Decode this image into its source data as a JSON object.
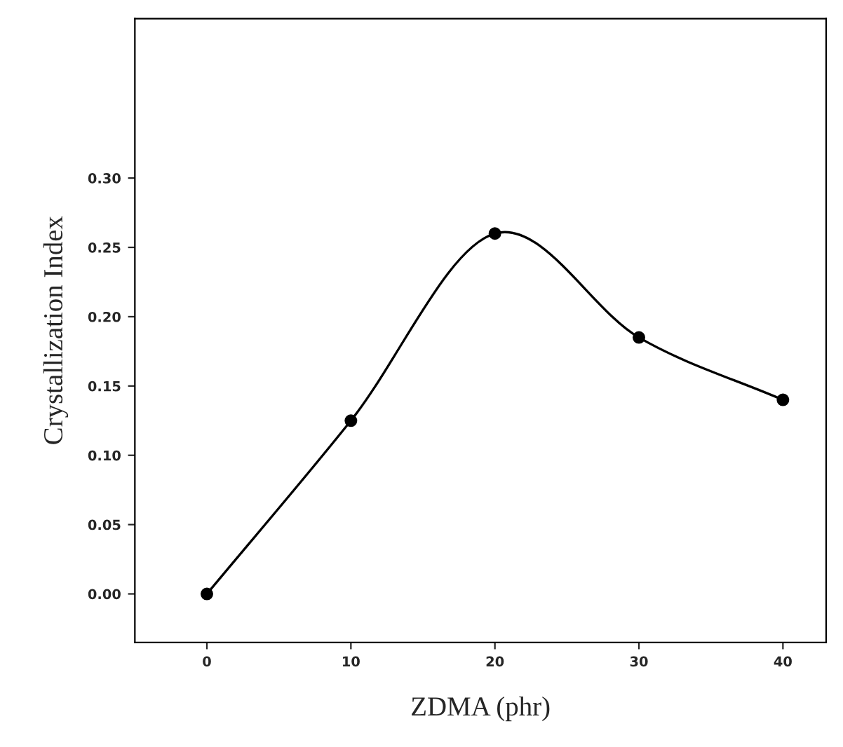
{
  "chart_data": {
    "type": "line",
    "xlabel": "ZDMA (phr)",
    "ylabel": "Crystallization Index",
    "x": [
      0,
      10,
      20,
      30,
      40
    ],
    "series": [
      {
        "color": "#000000",
        "values": [
          0.0,
          0.125,
          0.26,
          0.185,
          0.14
        ]
      }
    ],
    "xlim": [
      -5,
      43
    ],
    "ylim": [
      -0.035,
      0.415
    ],
    "xticks": [
      0,
      10,
      20,
      30,
      40
    ],
    "yticks": [
      {
        "value": 0,
        "label": "0.00"
      },
      {
        "value": 0.05,
        "label": "0.05"
      },
      {
        "value": 0.1,
        "label": "0.10"
      },
      {
        "value": 0.15,
        "label": "0.15"
      },
      {
        "value": 0.2,
        "label": "0.20"
      },
      {
        "value": 0.25,
        "label": "0.25"
      },
      {
        "value": 0.3,
        "label": "0.30"
      }
    ],
    "marker": "circle",
    "line_style": "solid",
    "grid": false,
    "legend": false
  }
}
